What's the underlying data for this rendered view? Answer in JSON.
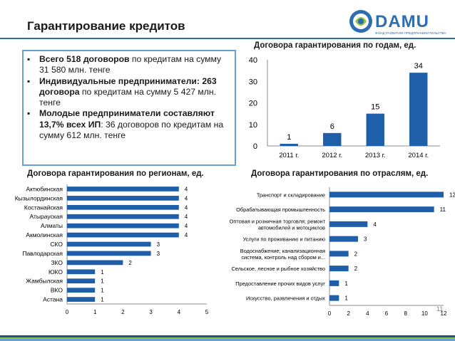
{
  "slide": {
    "title": "Гарантирование кредитов",
    "page_number": "11"
  },
  "logo": {
    "name": "DAMU",
    "tagline": "ФОНД РАЗВИТИЯ ПРЕДПРИНИМАТЕЛЬСТВА"
  },
  "bullets": [
    {
      "bold": "Всего 518 договоров",
      "rest": " по кредитам на сумму 31 580 млн. тенге"
    },
    {
      "bold": "Индивидуальные предприниматели: 263 договора",
      "rest": " по кредитам на сумму 5 427 млн. тенге"
    },
    {
      "bold": "Молодые предприниматели составляют 13,7% всех ИП",
      "rest": ": 36 договоров по кредитам на сумму 612 млн. тенге"
    }
  ],
  "colors": {
    "bar": "#1f5ea8",
    "accent": "#2f6db3",
    "border": "#6a9fd4",
    "stripe_dark": "#1f4e8c",
    "stripe_green": "#8cc63f"
  },
  "chart_data": [
    {
      "type": "bar",
      "title": "Договора гарантирования по годам, ед.",
      "categories": [
        "2011 г.",
        "2012 г.",
        "2013 г.",
        "2014 г."
      ],
      "values": [
        1,
        6,
        15,
        34
      ],
      "ylim": [
        0,
        40
      ],
      "yticks": [
        0,
        10,
        20,
        30,
        40
      ],
      "grid": false,
      "legend": "none"
    },
    {
      "type": "bar",
      "orientation": "horizontal",
      "title": "Договора гарантирования по регионам, ед.",
      "categories": [
        "Актюбинская",
        "Кызылординская",
        "Костанайская",
        "Атырауская",
        "Алматы",
        "Акмолинская",
        "СКО",
        "Павлодарская",
        "ЗКО",
        "ЮКО",
        "Жамбылская",
        "ВКО",
        "Астана"
      ],
      "values": [
        4,
        4,
        4,
        4,
        4,
        4,
        3,
        3,
        2,
        1,
        1,
        1,
        1
      ],
      "xlim": [
        0,
        5
      ],
      "xticks": [
        0,
        1,
        2,
        3,
        4,
        5
      ],
      "grid": false,
      "legend": "none"
    },
    {
      "type": "bar",
      "orientation": "horizontal",
      "title": "Договора гарантирования по отраслям, ед.",
      "categories": [
        [
          "Транспорт и складирование"
        ],
        [
          "Обрабатывающая промышленность"
        ],
        [
          "Оптовая и розничная торговля; ремонт",
          "автомобилей и мотоциклов"
        ],
        [
          "Услуги по проживанию и питанию"
        ],
        [
          "Водоснабжение; канализационная",
          "система, контроль над сбором и..."
        ],
        [
          "Сельское, лесное и рыбное хозяйство"
        ],
        [
          "Предоставление прочих видов услуг"
        ],
        [
          "Искусство, развлечения и отдых"
        ]
      ],
      "values": [
        12,
        11,
        4,
        3,
        2,
        2,
        1,
        1
      ],
      "xlim": [
        0,
        12
      ],
      "xticks": [
        0,
        2,
        4,
        6,
        8,
        10,
        12
      ],
      "grid": false,
      "legend": "none"
    }
  ]
}
